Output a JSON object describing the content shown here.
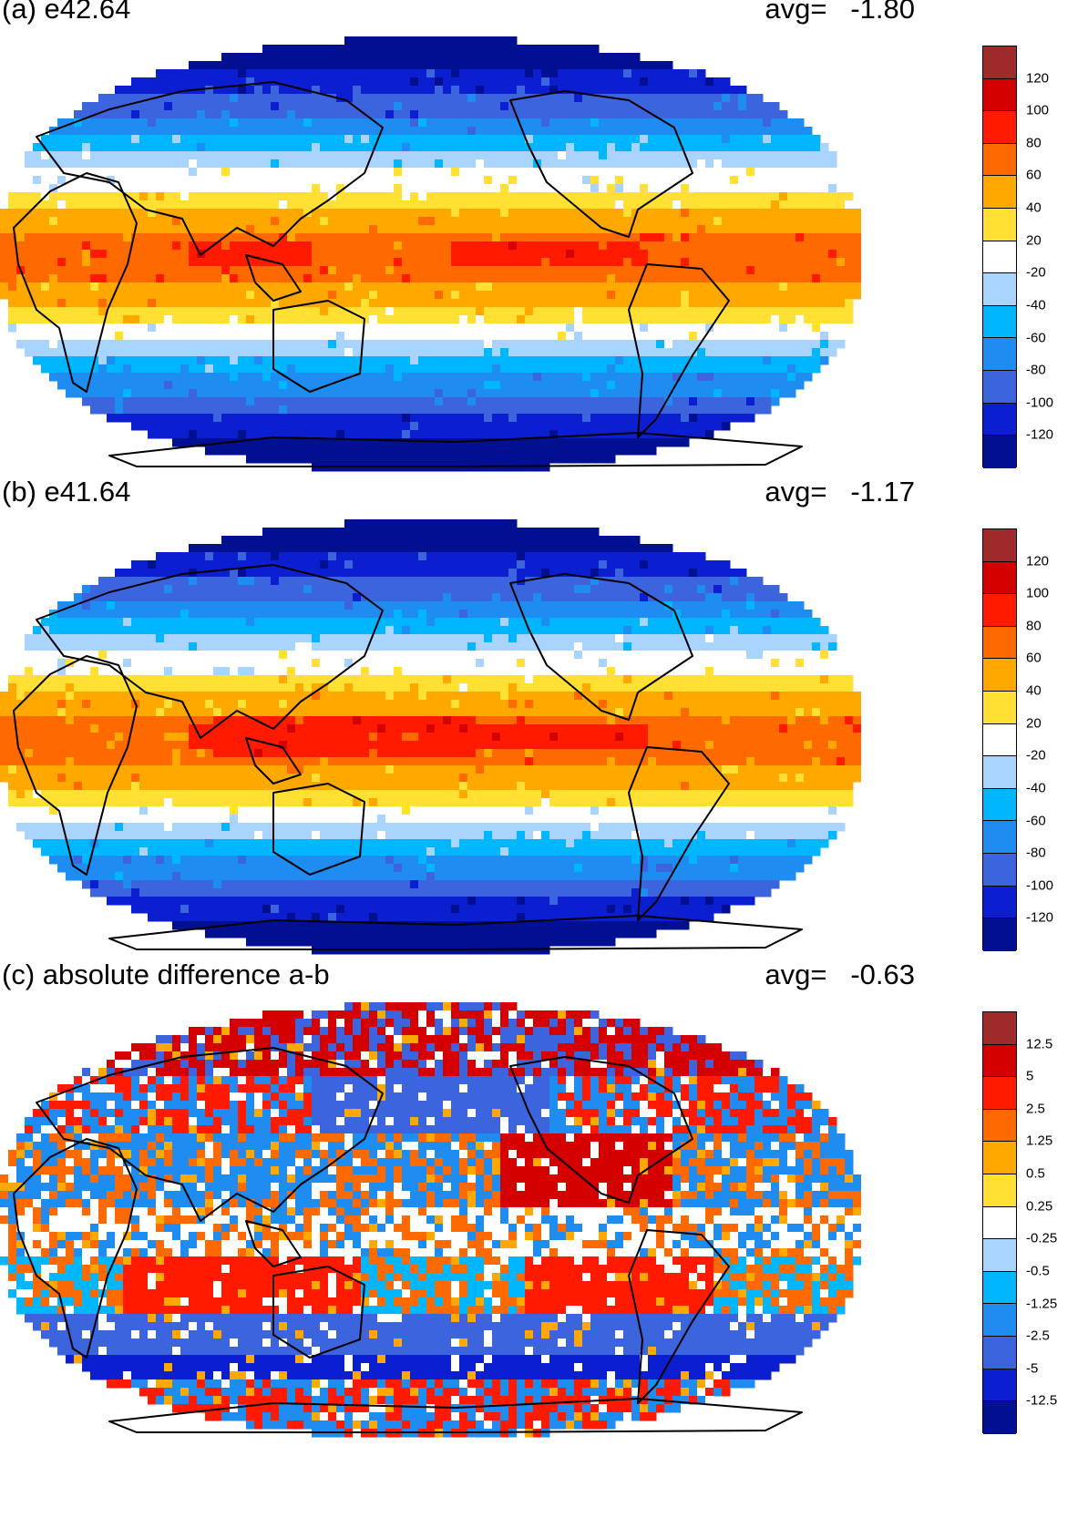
{
  "panels": [
    {
      "title": "(a) e42.64",
      "avg_label": "avg=",
      "avg_value": "-1.80",
      "colorbar": {
        "colors": [
          "#9e2a2b",
          "#d40000",
          "#ff1a00",
          "#ff6a00",
          "#ffa800",
          "#ffe033",
          "#ffffff",
          "#a8d4ff",
          "#00b6ff",
          "#1e8cf0",
          "#3c64dc",
          "#0b1fd0",
          "#001090"
        ],
        "labels": [
          "120",
          "100",
          "80",
          "60",
          "40",
          "20",
          "-20",
          "-40",
          "-60",
          "-80",
          "-100",
          "-120"
        ]
      },
      "field": "panel_a"
    },
    {
      "title": "(b) e41.64",
      "avg_label": "avg=",
      "avg_value": "-1.17",
      "colorbar": {
        "colors": [
          "#9e2a2b",
          "#d40000",
          "#ff1a00",
          "#ff6a00",
          "#ffa800",
          "#ffe033",
          "#ffffff",
          "#a8d4ff",
          "#00b6ff",
          "#1e8cf0",
          "#3c64dc",
          "#0b1fd0",
          "#001090"
        ],
        "labels": [
          "120",
          "100",
          "80",
          "60",
          "40",
          "20",
          "-20",
          "-40",
          "-60",
          "-80",
          "-100",
          "-120"
        ]
      },
      "field": "panel_b"
    },
    {
      "title": "(c) absolute difference a-b",
      "avg_label": "avg=",
      "avg_value": "-0.63",
      "colorbar": {
        "colors": [
          "#9e2a2b",
          "#d40000",
          "#ff1a00",
          "#ff6a00",
          "#ffa800",
          "#ffe033",
          "#ffffff",
          "#a8d4ff",
          "#00b6ff",
          "#1e8cf0",
          "#3c64dc",
          "#0b1fd0",
          "#001090"
        ],
        "labels": [
          "12.5",
          "5",
          "2.5",
          "1.25",
          "0.5",
          "0.25",
          "-0.25",
          "-0.5",
          "-1.25",
          "-2.5",
          "-5",
          "-12.5"
        ]
      },
      "field": "panel_c"
    }
  ]
}
